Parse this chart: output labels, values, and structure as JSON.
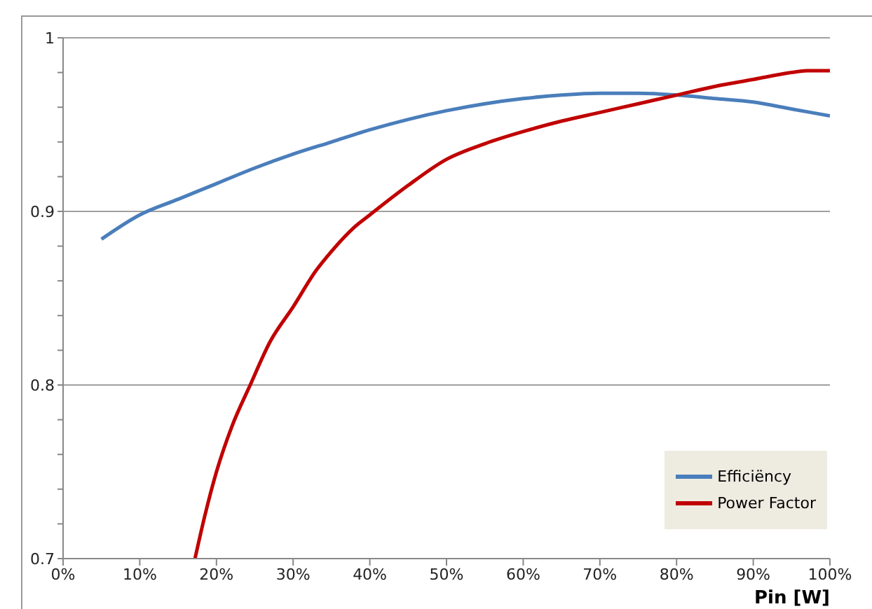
{
  "chart_data": {
    "type": "line",
    "xlabel": "Pin [W]",
    "xlim": [
      0,
      100
    ],
    "xticks": [
      {
        "value": 0,
        "label": "0%"
      },
      {
        "value": 10,
        "label": "10%"
      },
      {
        "value": 20,
        "label": "20%"
      },
      {
        "value": 30,
        "label": "30%"
      },
      {
        "value": 40,
        "label": "40%"
      },
      {
        "value": 50,
        "label": "50%"
      },
      {
        "value": 60,
        "label": "60%"
      },
      {
        "value": 70,
        "label": "70%"
      },
      {
        "value": 80,
        "label": "80%"
      },
      {
        "value": 90,
        "label": "90%"
      },
      {
        "value": 100,
        "label": "100%"
      }
    ],
    "ylim": [
      0.7,
      1
    ],
    "yticks": [
      0.7,
      {
        "value": 0.72,
        "label": null
      },
      {
        "value": 0.74,
        "label": null
      },
      {
        "value": 0.76,
        "label": null
      },
      {
        "value": 0.78,
        "label": null
      },
      0.8,
      {
        "value": 0.82,
        "label": null
      },
      {
        "value": 0.84,
        "label": null
      },
      {
        "value": 0.86,
        "label": null
      },
      {
        "value": 0.88,
        "label": null
      },
      0.9,
      {
        "value": 0.92,
        "label": null
      },
      {
        "value": 0.94,
        "label": null
      },
      {
        "value": 0.96,
        "label": null
      },
      {
        "value": 0.98,
        "label": null
      },
      1
    ],
    "grid": "y",
    "legend": "bottom right",
    "marker": "none",
    "line_style": "solid",
    "series": [
      {
        "name": "Efficiëncy",
        "color": "#4a7ebb",
        "x": [
          5,
          10,
          15,
          20,
          25,
          30,
          35,
          40,
          45,
          50,
          55,
          60,
          65,
          70,
          75,
          80,
          85,
          90,
          95,
          100
        ],
        "values": [
          0.884,
          0.898,
          0.907,
          0.916,
          0.925,
          0.933,
          0.94,
          0.947,
          0.953,
          0.958,
          0.962,
          0.965,
          0.967,
          0.968,
          0.968,
          0.967,
          0.965,
          0.963,
          0.959,
          0.955
        ]
      },
      {
        "name": "Power Factor",
        "color": "#c00000",
        "x": [
          17.2,
          18.5,
          20,
          22,
          24.4,
          27,
          30,
          33,
          35,
          38,
          40,
          45,
          50,
          55,
          60,
          65,
          70,
          75,
          80,
          85,
          90,
          95,
          97,
          100
        ],
        "values": [
          0.7,
          0.725,
          0.75,
          0.776,
          0.8,
          0.825,
          0.845,
          0.866,
          0.877,
          0.891,
          0.898,
          0.915,
          0.93,
          0.939,
          0.946,
          0.952,
          0.957,
          0.962,
          0.967,
          0.972,
          0.976,
          0.98,
          0.981,
          0.981
        ]
      }
    ]
  }
}
